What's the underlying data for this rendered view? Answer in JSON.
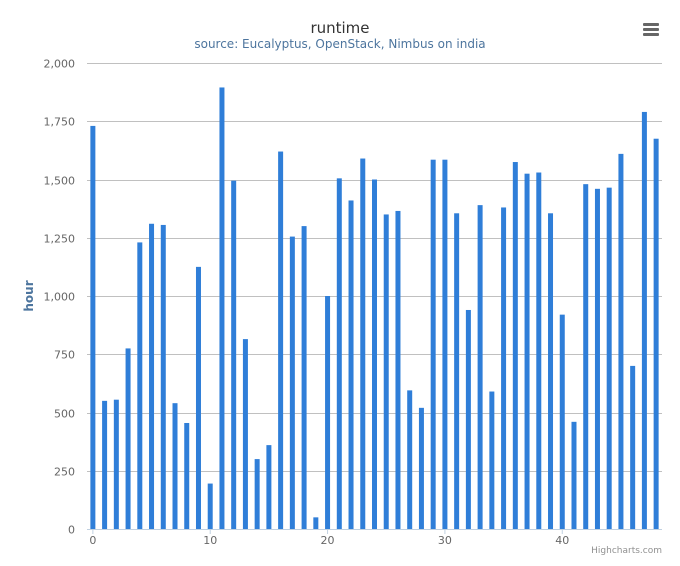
{
  "chart_data": {
    "type": "bar",
    "title": "runtime",
    "subtitle": "source: Eucalyptus, OpenStack, Nimbus on india",
    "xlabel": "",
    "ylabel": "hour",
    "ylim": [
      0,
      2000
    ],
    "xlim": [
      -0.5,
      48.5
    ],
    "y_ticks": [
      0,
      250,
      500,
      750,
      1000,
      1250,
      1500,
      1750,
      2000
    ],
    "y_tick_labels": [
      "0",
      "250",
      "500",
      "750",
      "1,000",
      "1,250",
      "1,500",
      "1,750",
      "2,000"
    ],
    "x_ticks": [
      0,
      10,
      20,
      30,
      40
    ],
    "x_tick_labels": [
      "0",
      "10",
      "20",
      "30",
      "40"
    ],
    "grid": true,
    "legend": "none",
    "series": [
      {
        "name": "runtime",
        "x": [
          0,
          1,
          2,
          3,
          4,
          5,
          6,
          7,
          8,
          9,
          10,
          11,
          12,
          13,
          14,
          15,
          16,
          17,
          18,
          19,
          20,
          21,
          22,
          23,
          24,
          25,
          26,
          27,
          28,
          29,
          30,
          31,
          32,
          33,
          34,
          35,
          36,
          37,
          38,
          39,
          40,
          41,
          42,
          43,
          44,
          45,
          46,
          47,
          48
        ],
        "values": [
          1730,
          550,
          555,
          775,
          1230,
          1310,
          1305,
          540,
          455,
          1125,
          195,
          1895,
          1495,
          815,
          300,
          360,
          1620,
          1255,
          1300,
          50,
          1000,
          1505,
          1410,
          1590,
          1500,
          1350,
          1365,
          595,
          520,
          1585,
          1585,
          1355,
          940,
          1390,
          590,
          1380,
          1575,
          1525,
          1530,
          1355,
          920,
          460,
          1480,
          1460,
          1465,
          1610,
          700,
          1790,
          1675
        ],
        "color": "#2f7ed8"
      }
    ]
  },
  "credits": "Highcharts.com",
  "menu": {
    "icon": "hamburger-menu-icon"
  }
}
